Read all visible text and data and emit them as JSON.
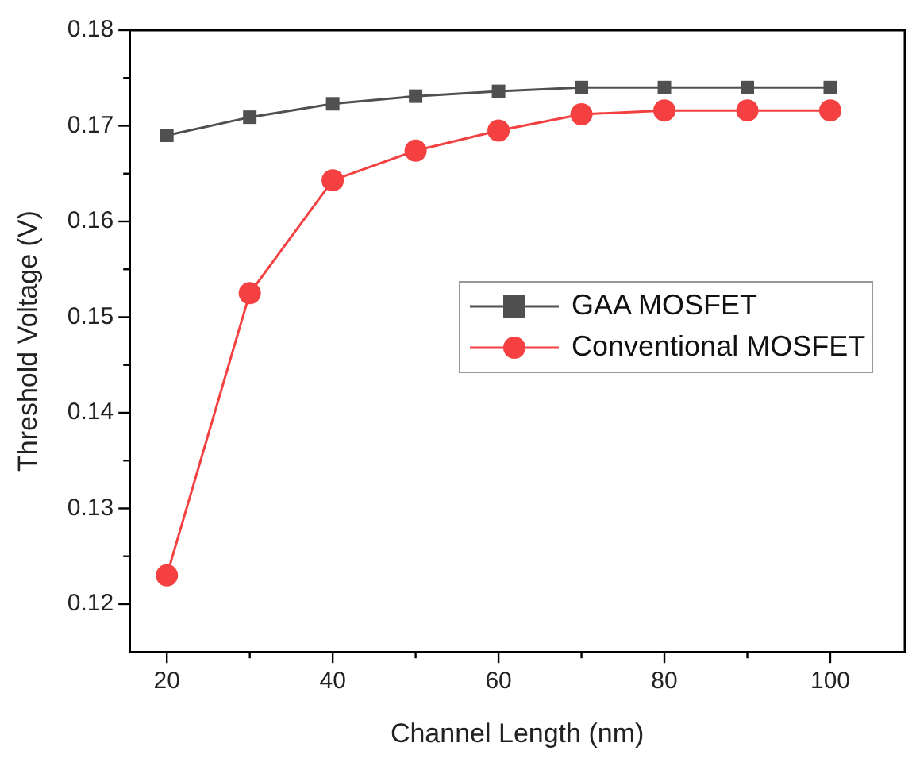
{
  "chart_data": {
    "type": "line",
    "xlabel": "Channel Length (nm)",
    "ylabel": "Threshold Voltage (V)",
    "x": [
      20,
      30,
      40,
      50,
      60,
      70,
      80,
      90,
      100
    ],
    "series": [
      {
        "name": "GAA MOSFET",
        "color": "#505050",
        "marker": "square",
        "values": [
          0.169,
          0.1709,
          0.1723,
          0.1731,
          0.1736,
          0.174,
          0.174,
          0.174,
          0.174
        ]
      },
      {
        "name": "Conventional MOSFET",
        "color": "#f44040",
        "marker": "circle",
        "values": [
          0.123,
          0.1525,
          0.1643,
          0.1674,
          0.1695,
          0.1712,
          0.1716,
          0.1716,
          0.1716
        ]
      }
    ],
    "xlim": [
      15.5,
      109
    ],
    "xticks": [
      20,
      {
        "value": 30,
        "label": null
      },
      40,
      {
        "value": 50,
        "label": null
      },
      60,
      {
        "value": 70,
        "label": null
      },
      80,
      {
        "value": 90,
        "label": null
      },
      100
    ],
    "ylim": [
      0.115,
      0.18
    ],
    "yticks": [
      0.12,
      {
        "value": 0.125,
        "label": null
      },
      0.13,
      {
        "value": 0.135,
        "label": null
      },
      0.14,
      {
        "value": 0.145,
        "label": null
      },
      0.15,
      {
        "value": 0.155,
        "label": null
      },
      0.16,
      {
        "value": 0.165,
        "label": null
      },
      0.17,
      {
        "value": 0.175,
        "label": null
      },
      0.18
    ],
    "grid": false,
    "legend": "center right",
    "line_style": "solid"
  }
}
